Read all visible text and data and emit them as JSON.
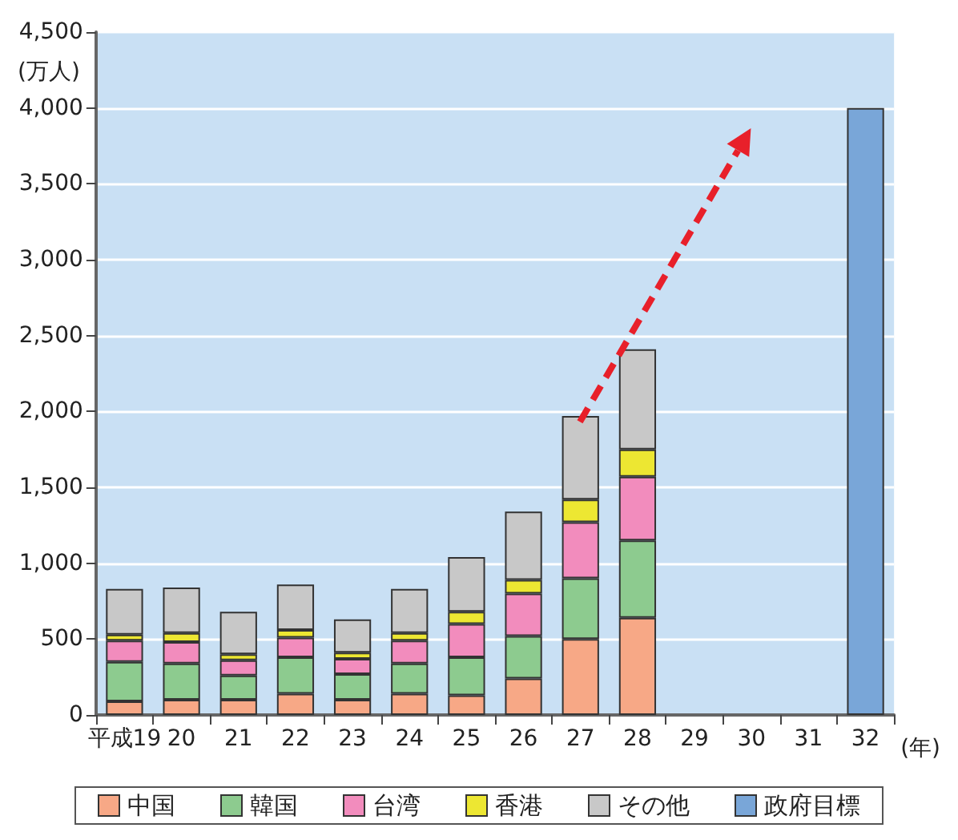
{
  "chart_data": {
    "type": "bar",
    "stacked": true,
    "ylabel": "(万人)",
    "xlabel": "(年)",
    "categories": [
      "平成19",
      "20",
      "21",
      "22",
      "23",
      "24",
      "25",
      "26",
      "27",
      "28",
      "29",
      "30",
      "31",
      "32"
    ],
    "series": [
      {
        "name": "中国",
        "color": "#f7a886",
        "values": [
          90,
          100,
          100,
          140,
          100,
          140,
          130,
          240,
          500,
          640,
          null,
          null,
          null,
          null
        ]
      },
      {
        "name": "韓国",
        "color": "#8dcb8f",
        "values": [
          260,
          240,
          160,
          240,
          170,
          200,
          250,
          280,
          400,
          510,
          null,
          null,
          null,
          null
        ]
      },
      {
        "name": "台湾",
        "color": "#f28cbd",
        "values": [
          140,
          140,
          100,
          130,
          100,
          150,
          220,
          280,
          370,
          420,
          null,
          null,
          null,
          null
        ]
      },
      {
        "name": "香港",
        "color": "#ede732",
        "values": [
          40,
          60,
          40,
          50,
          40,
          50,
          80,
          90,
          150,
          180,
          null,
          null,
          null,
          null
        ]
      },
      {
        "name": "その他",
        "color": "#c8c8c8",
        "values": [
          300,
          300,
          280,
          300,
          220,
          290,
          360,
          450,
          550,
          660,
          null,
          null,
          null,
          null
        ]
      },
      {
        "name": "政府目標",
        "color": "#79a6d8",
        "values": [
          null,
          null,
          null,
          null,
          null,
          null,
          null,
          null,
          null,
          null,
          null,
          null,
          null,
          4000
        ]
      }
    ],
    "ylim": [
      0,
      4500
    ],
    "yticks": [
      0,
      500,
      {
        "value": 1000,
        "label": "1,000"
      },
      {
        "value": 1500,
        "label": "1,500"
      },
      {
        "value": 2000,
        "label": "2,000"
      },
      {
        "value": 2500,
        "label": "2,500"
      },
      {
        "value": 3000,
        "label": "3,000"
      },
      {
        "value": 3500,
        "label": "3,500"
      },
      {
        "value": 4000,
        "label": "4,000"
      },
      {
        "value": 4500,
        "label": "4,500"
      }
    ],
    "grid": "y",
    "legend": "bottom"
  }
}
